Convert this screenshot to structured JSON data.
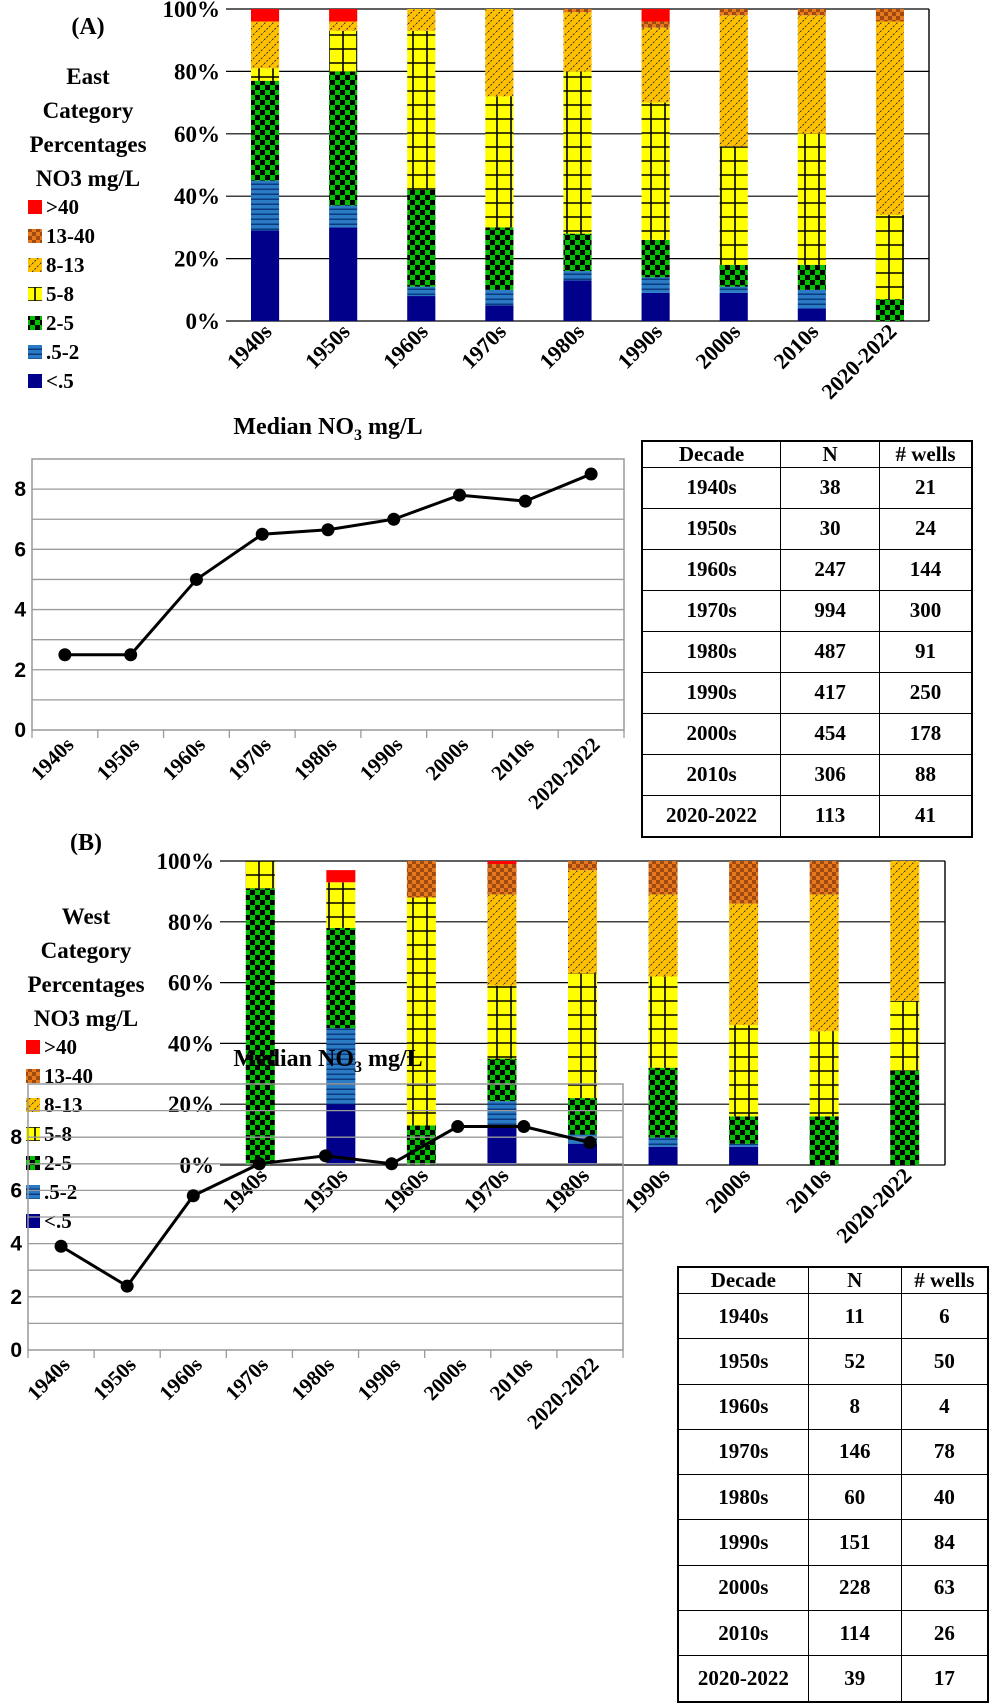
{
  "chart_data": [
    {
      "type": "bar",
      "stacked": true,
      "panel_label": "(A)",
      "legend_title": [
        "East",
        "Category",
        "Percentages",
        "NO3 mg/L"
      ],
      "legend_placement": "left",
      "categories": [
        "1940s",
        "1950s",
        "1960s",
        "1970s",
        "1980s",
        "1990s",
        "2000s",
        "2010s",
        "2020-2022"
      ],
      "ylim": [
        0,
        100
      ],
      "yticks": [
        "0%",
        "20%",
        "40%",
        "60%",
        "80%",
        "100%"
      ],
      "grid": true,
      "series": [
        {
          "name": "<.5",
          "color": "#00008B",
          "values": [
            29,
            30,
            8,
            5,
            13,
            9,
            9,
            4,
            0
          ]
        },
        {
          "name": ".5-2",
          "color": "#1F6FB5",
          "values": [
            16,
            7,
            3,
            5,
            3,
            5,
            2,
            6,
            0
          ]
        },
        {
          "name": "2-5",
          "color": "#00C000",
          "values": [
            32,
            43,
            31,
            20,
            12,
            12,
            7,
            8,
            7
          ]
        },
        {
          "name": "5-8",
          "color": "#FFFF00",
          "values": [
            4,
            13,
            51,
            42,
            52,
            44,
            38,
            42,
            27
          ]
        },
        {
          "name": "8-13",
          "color": "#FFC000",
          "values": [
            15,
            3,
            7,
            28,
            19,
            24,
            42,
            38,
            62
          ]
        },
        {
          "name": "13-40",
          "color": "#E6781E",
          "values": [
            0,
            0,
            0,
            0,
            1,
            2,
            2,
            2,
            4
          ]
        },
        {
          "name": ">40",
          "color": "#FF0000",
          "values": [
            4,
            4,
            0,
            0,
            0,
            4,
            0,
            0,
            0
          ]
        }
      ]
    },
    {
      "type": "line",
      "title_text": "Median NO",
      "title_sub": "3",
      "title_unit": " mg/L",
      "categories": [
        "1940s",
        "1950s",
        "1960s",
        "1970s",
        "1980s",
        "1990s",
        "2000s",
        "2010s",
        "2020-2022"
      ],
      "values": [
        2.5,
        2.5,
        5,
        6.5,
        6.65,
        7,
        7.8,
        7.6,
        8.5
      ],
      "ylim": [
        0,
        9
      ],
      "yticks": [
        "0",
        "2",
        "4",
        "6",
        "8"
      ],
      "grid": true
    },
    {
      "type": "table",
      "headers": [
        "Decade",
        "N",
        "# wells"
      ],
      "rows": [
        [
          "1940s",
          "38",
          "21"
        ],
        [
          "1950s",
          "30",
          "24"
        ],
        [
          "1960s",
          "247",
          "144"
        ],
        [
          "1970s",
          "994",
          "300"
        ],
        [
          "1980s",
          "487",
          "91"
        ],
        [
          "1990s",
          "417",
          "250"
        ],
        [
          "2000s",
          "454",
          "178"
        ],
        [
          "2010s",
          "306",
          "88"
        ],
        [
          "2020-2022",
          "113",
          "41"
        ]
      ]
    },
    {
      "type": "bar",
      "stacked": true,
      "panel_label": "(B)",
      "legend_title": [
        "West",
        "Category",
        "Percentages",
        "NO3 mg/L"
      ],
      "legend_placement": "left",
      "categories": [
        "1940s",
        "1950s",
        "1960s",
        "1970s",
        "1980s",
        "1990s",
        "2000s",
        "2010s",
        "2020-2022"
      ],
      "ylim": [
        0,
        100
      ],
      "yticks": [
        "0%",
        "20%",
        "40%",
        "60%",
        "80%",
        "100%"
      ],
      "grid": true,
      "series": [
        {
          "name": "<.5",
          "color": "#00008B",
          "values": [
            0,
            20,
            0,
            13,
            7,
            6,
            6,
            0,
            0
          ]
        },
        {
          "name": ".5-2",
          "color": "#1F6FB5",
          "values": [
            0,
            25,
            0,
            8,
            3,
            3,
            1,
            0,
            0
          ]
        },
        {
          "name": "2-5",
          "color": "#00C000",
          "values": [
            91,
            33,
            13,
            14,
            12,
            23,
            9,
            16,
            31
          ]
        },
        {
          "name": "5-8",
          "color": "#FFFF00",
          "values": [
            9,
            15,
            75,
            24,
            41,
            30,
            30,
            28,
            23
          ]
        },
        {
          "name": "8-13",
          "color": "#FFC000",
          "values": [
            0,
            0,
            0,
            30,
            34,
            27,
            40,
            45,
            46
          ]
        },
        {
          "name": "13-40",
          "color": "#E6781E",
          "values": [
            0,
            0,
            12,
            10,
            3,
            11,
            14,
            11,
            0
          ]
        },
        {
          "name": ">40",
          "color": "#FF0000",
          "values": [
            0,
            4,
            0,
            1,
            0,
            0,
            0,
            0,
            0
          ]
        }
      ]
    },
    {
      "type": "line",
      "title_text": "Median NO",
      "title_sub": "3",
      "title_unit": " mg/L",
      "categories": [
        "1940s",
        "1950s",
        "1960s",
        "1970s",
        "1980s",
        "1990s",
        "2000s",
        "2010s",
        "2020-2022"
      ],
      "values": [
        3.9,
        2.4,
        5.8,
        7,
        7.3,
        7,
        8.4,
        8.4,
        7.8
      ],
      "ylim": [
        0,
        10
      ],
      "yticks": [
        "0",
        "2",
        "4",
        "6",
        "8"
      ],
      "grid": true
    },
    {
      "type": "table",
      "headers": [
        "Decade",
        "N",
        "# wells"
      ],
      "rows": [
        [
          "1940s",
          "11",
          "6"
        ],
        [
          "1950s",
          "52",
          "50"
        ],
        [
          "1960s",
          "8",
          "4"
        ],
        [
          "1970s",
          "146",
          "78"
        ],
        [
          "1980s",
          "60",
          "40"
        ],
        [
          "1990s",
          "151",
          "84"
        ],
        [
          "2000s",
          "228",
          "63"
        ],
        [
          "2010s",
          "114",
          "26"
        ],
        [
          "2020-2022",
          "39",
          "17"
        ]
      ]
    }
  ]
}
